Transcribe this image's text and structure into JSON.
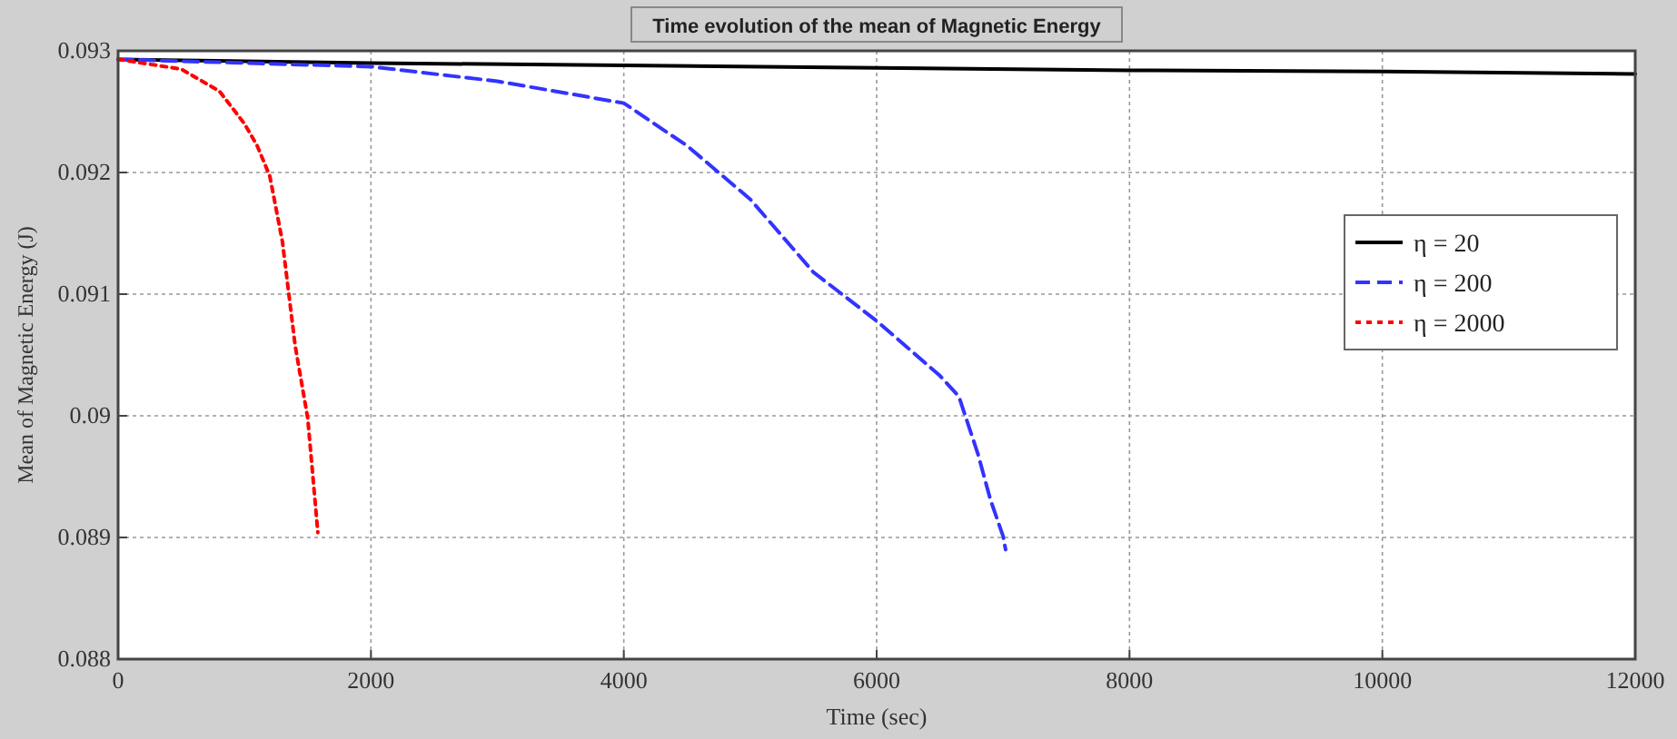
{
  "chart_data": {
    "type": "line",
    "title": "Time evolution of the mean of Magnetic Energy",
    "xlabel": "Time (sec)",
    "ylabel": "Mean of Magnetic Energy (J)",
    "xlim": [
      0,
      12000
    ],
    "xticks": [
      0,
      2000,
      4000,
      6000,
      8000,
      10000,
      12000
    ],
    "ylim": [
      0.088,
      0.093
    ],
    "yticks": [
      0.088,
      0.089,
      0.09,
      0.091,
      0.092,
      0.093
    ],
    "grid": true,
    "legend": "right",
    "series": [
      {
        "name": "η = 20",
        "color": "#000000",
        "line_style": "solid",
        "x": [
          0,
          2000,
          4000,
          6000,
          8000,
          10000,
          12000
        ],
        "values": [
          0.09293,
          0.0929,
          0.09288,
          0.09286,
          0.09284,
          0.09283,
          0.09281
        ]
      },
      {
        "name": "η = 200",
        "color": "#3333ff",
        "line_style": "dashed",
        "x": [
          0,
          1000,
          2000,
          3000,
          4000,
          4500,
          5000,
          5500,
          6000,
          6500,
          6650,
          6800,
          6900,
          7000,
          7020
        ],
        "values": [
          0.09293,
          0.0929,
          0.09287,
          0.09275,
          0.09257,
          0.09222,
          0.09178,
          0.09118,
          0.09078,
          0.09033,
          0.09016,
          0.08969,
          0.08931,
          0.08901,
          0.0889
        ]
      },
      {
        "name": "η = 2000",
        "color": "#ff0000",
        "line_style": "dotted",
        "x": [
          0,
          500,
          800,
          1000,
          1100,
          1200,
          1300,
          1400,
          1500,
          1580
        ],
        "values": [
          0.09293,
          0.09285,
          0.09267,
          0.0924,
          0.09222,
          0.09197,
          0.09143,
          0.09058,
          0.08998,
          0.08904
        ]
      }
    ]
  }
}
